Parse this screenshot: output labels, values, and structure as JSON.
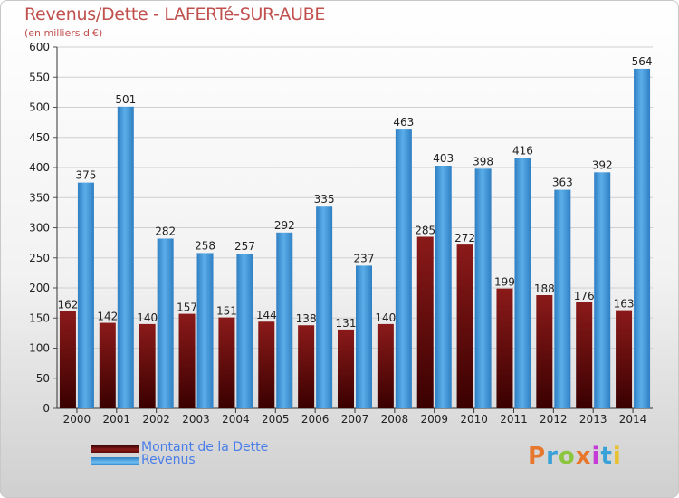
{
  "title": "Revenus/Dette - LAFERTé-SUR-AUBE",
  "subtitle": "(en milliers d'€)",
  "logo": "Proxiti",
  "colors": {
    "debt": "#8b1a1a",
    "debt_dark": "#5a0a0a",
    "revenue": "#5aaee8",
    "revenue_dark": "#2f7fc3",
    "text": "#222222",
    "accent_title": "#c0504d",
    "legend_text": "#4a7ee8"
  },
  "chart_data": {
    "type": "bar",
    "title": "Revenus/Dette - LAFERTé-SUR-AUBE",
    "subtitle": "(en milliers d'€)",
    "categories": [
      "2000",
      "2001",
      "2002",
      "2003",
      "2004",
      "2005",
      "2006",
      "2007",
      "2008",
      "2009",
      "2010",
      "2011",
      "2012",
      "2013",
      "2014"
    ],
    "series": [
      {
        "name": "Montant de la Dette",
        "values": [
          162,
          142,
          140,
          157,
          151,
          144,
          138,
          131,
          140,
          285,
          272,
          199,
          188,
          176,
          163
        ]
      },
      {
        "name": "Revenus",
        "values": [
          375,
          501,
          282,
          258,
          257,
          292,
          335,
          237,
          463,
          403,
          398,
          416,
          363,
          392,
          564
        ]
      }
    ],
    "ylim": [
      0,
      600
    ],
    "yticks": [
      0,
      50,
      100,
      150,
      200,
      250,
      300,
      350,
      400,
      450,
      500,
      550,
      600
    ],
    "grid": true,
    "legend": "bottom-left"
  }
}
